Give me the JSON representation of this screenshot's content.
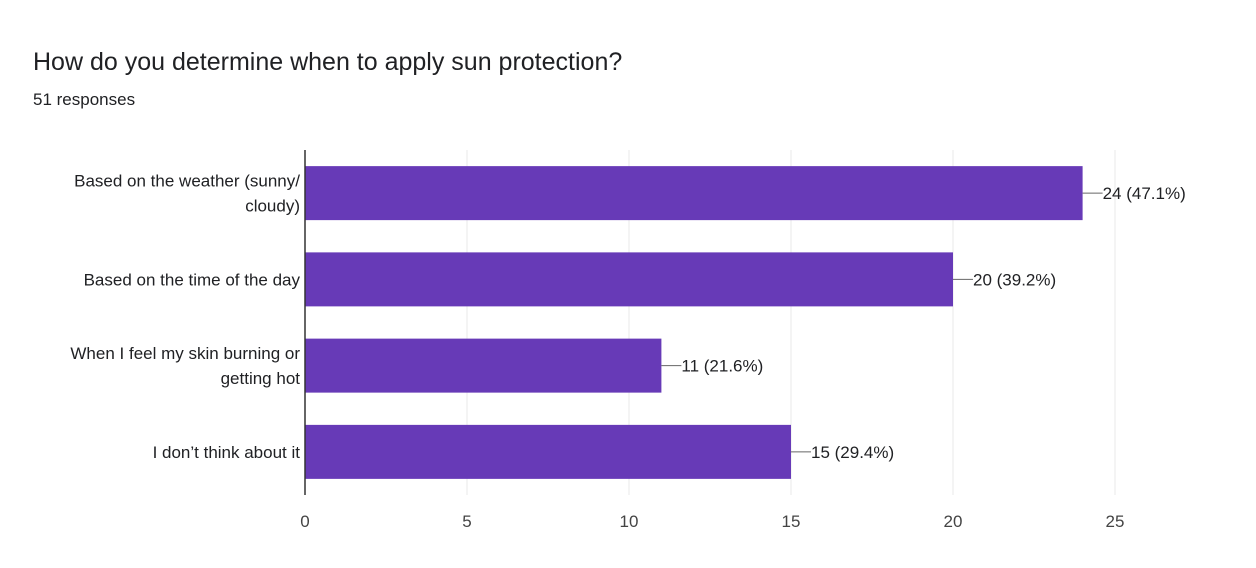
{
  "question": {
    "title": "How do you determine when to apply sun protection?",
    "responses": "51 responses"
  },
  "colors": {
    "bar": "#673ab7",
    "grid": "#e8e8e8",
    "axis": "#333333",
    "text": "#202124"
  },
  "chart_data": {
    "type": "bar",
    "orientation": "horizontal",
    "categories": [
      [
        "Based on the weather (sunny/",
        "cloudy)"
      ],
      [
        "Based on the time of the day"
      ],
      [
        "When I feel my skin burning or",
        "getting hot"
      ],
      [
        "I don’t think about it"
      ]
    ],
    "values": [
      24,
      20,
      11,
      15
    ],
    "data_labels": [
      "24 (47.1%)",
      "20 (39.2%)",
      "11 (21.6%)",
      "15 (29.4%)"
    ],
    "xlim": [
      0,
      25
    ],
    "xticks": [
      0,
      5,
      10,
      15,
      20,
      25
    ],
    "xlabel": "",
    "ylabel": "",
    "grid": true,
    "legend": "none"
  }
}
